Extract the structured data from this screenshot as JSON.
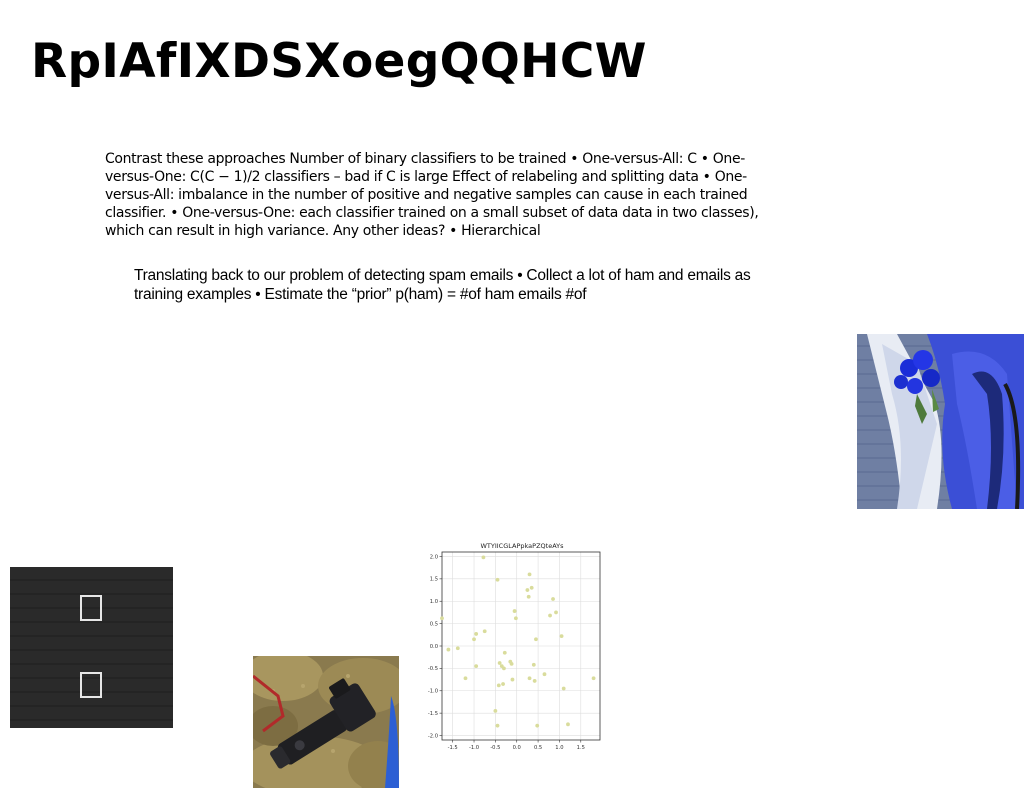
{
  "title": "RpIAfIXDSXoegQQHCW",
  "paragraphs": [
    "Contrast these approaches Number of binary classifiers to be trained • One-versus-All: C • One-versus-One: C(C − 1)/2 classifiers – bad if C is large Effect of relabeling and splitting data • One-versus-All: imbalance in the number of positive and negative samples can cause in each trained classifier. • One-versus-One: each classifier trained on a small subset of data data in two classes), which can result in high variance. Any other ideas? • Hierarchical",
    "Translating back to our problem of detecting spam emails • Collect a lot of ham and emails as training examples • Estimate the “prior” p(ham) = #of ham emails #of"
  ],
  "icons": {
    "dark_photo_glyph": "placeholder-square-icon"
  },
  "colors": {
    "point": "#d9dc9c",
    "grid": "#dddddd"
  },
  "chart_data": {
    "type": "scatter",
    "title": "WTYIICGLAPpkaPZQteAYs",
    "xlabel": "",
    "ylabel": "",
    "xlim": [
      -1.75,
      1.95
    ],
    "ylim": [
      -2.1,
      2.1
    ],
    "xticks": [
      "-1.5",
      "-1.0",
      "-0.5",
      "0.0",
      "0.5",
      "1.0",
      "1.5"
    ],
    "yticks": [
      "2.0",
      "1.5",
      "1.0",
      "0.5",
      "0.0",
      "-0.5",
      "-1.0",
      "-1.5",
      "-2.0"
    ],
    "grid": true,
    "x": [
      -0.78,
      -0.45,
      0.3,
      0.35,
      0.25,
      0.28,
      0.85,
      0.92,
      0.78,
      -0.05,
      -0.02,
      1.05,
      0.45,
      -1.75,
      -0.95,
      -1.0,
      -0.75,
      -1.6,
      -1.38,
      -1.2,
      -0.95,
      -0.28,
      -0.4,
      -0.35,
      -0.15,
      -0.12,
      0.4,
      0.65,
      -0.42,
      -0.32,
      1.1,
      1.8,
      -0.1,
      0.3,
      0.42,
      -0.5,
      -0.45,
      0.48,
      1.2,
      -0.3
    ],
    "y": [
      1.98,
      1.48,
      1.6,
      1.3,
      1.25,
      1.1,
      1.05,
      0.75,
      0.68,
      0.78,
      0.62,
      0.22,
      0.15,
      0.62,
      0.27,
      0.15,
      0.33,
      -0.08,
      -0.05,
      -0.72,
      -0.45,
      -0.15,
      -0.38,
      -0.45,
      -0.35,
      -0.4,
      -0.42,
      -0.63,
      -0.88,
      -0.85,
      -0.95,
      -0.72,
      -0.75,
      -0.72,
      -0.78,
      -1.45,
      -1.78,
      -1.78,
      -1.75,
      -0.5
    ]
  }
}
